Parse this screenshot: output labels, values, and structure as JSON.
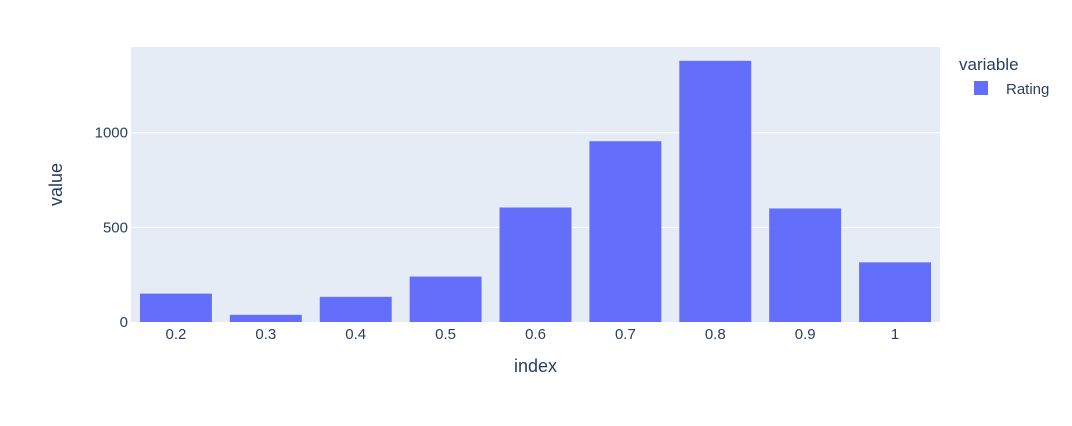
{
  "chart_data": {
    "type": "bar",
    "categories": [
      "0.2",
      "0.3",
      "0.4",
      "0.5",
      "0.6",
      "0.7",
      "0.8",
      "0.9",
      "1"
    ],
    "series": [
      {
        "name": "Rating",
        "values": [
          150,
          38,
          133,
          240,
          605,
          955,
          1380,
          600,
          315
        ]
      }
    ],
    "title": "",
    "xlabel": "index",
    "ylabel": "value",
    "ylim": [
      0,
      1453
    ],
    "yticks": [
      0,
      500,
      1000
    ],
    "ytick_labels": [
      "0",
      "500",
      "1000"
    ],
    "grid": true,
    "legend": {
      "title": "variable",
      "position": "top-right"
    },
    "colors": {
      "bar": "#636efa",
      "plot_bg": "#e5ecf6",
      "grid": "#ffffff",
      "text": "#2a3f5f"
    }
  }
}
